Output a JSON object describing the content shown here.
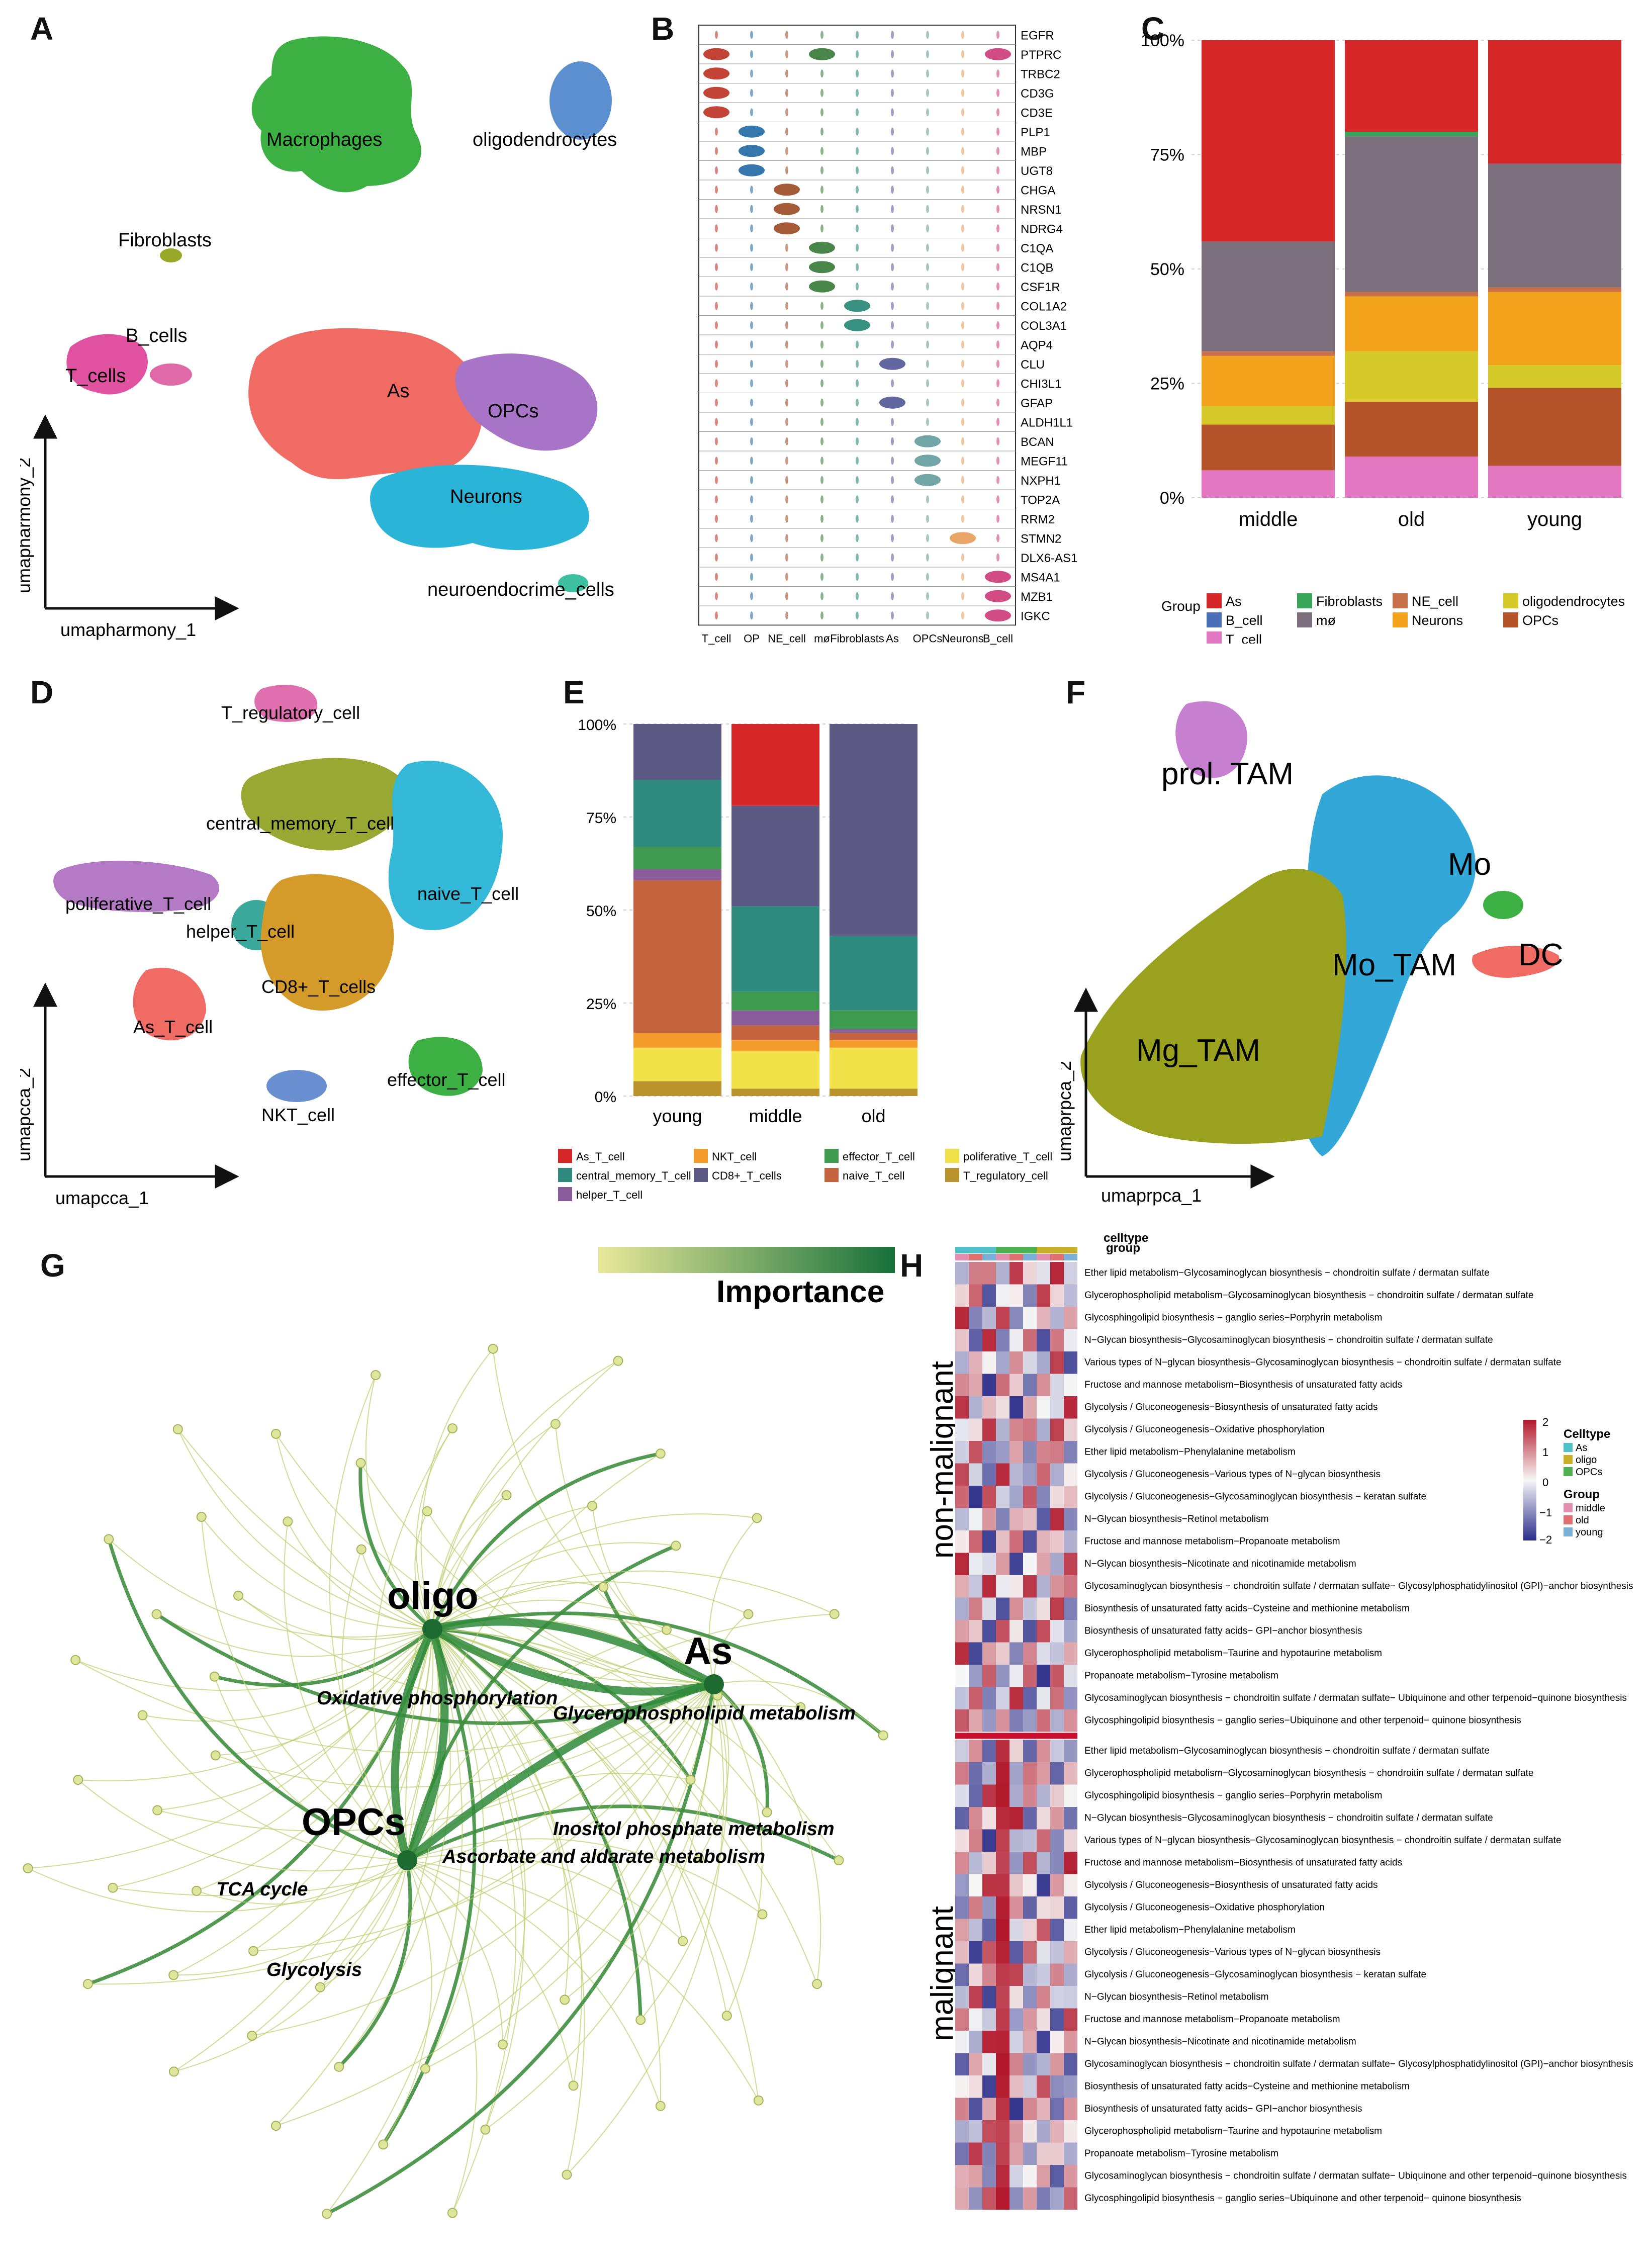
{
  "panel_labels": [
    "A",
    "B",
    "C",
    "D",
    "E",
    "F",
    "G",
    "H"
  ],
  "panelA": {
    "clusters": [
      {
        "name": "Macrophages",
        "color": "#3cb043"
      },
      {
        "name": "oligodendrocytes",
        "color": "#5b8fd0"
      },
      {
        "name": "Fibroblasts",
        "color": "#9aa82a"
      },
      {
        "name": "B_cells",
        "color": "#e06aa8"
      },
      {
        "name": "T_cells",
        "color": "#e052a0"
      },
      {
        "name": "As",
        "color": "#ef6b63"
      },
      {
        "name": "OPCs",
        "color": "#a774c8"
      },
      {
        "name": "Neurons",
        "color": "#29b4d8"
      },
      {
        "name": "neuroendocrime_cells",
        "color": "#3dc0a0"
      }
    ],
    "xlabel": "umapharmony_1",
    "ylabel": "umapharmony_2"
  },
  "panelB": {
    "genes": [
      "EGFR",
      "PTPRC",
      "TRBC2",
      "CD3G",
      "CD3E",
      "PLP1",
      "MBP",
      "UGT8",
      "CHGA",
      "NRSN1",
      "NDRG4",
      "C1QA",
      "C1QB",
      "CSF1R",
      "COL1A2",
      "COL3A1",
      "AQP4",
      "CLU",
      "CHI3L1",
      "GFAP",
      "ALDH1L1",
      "BCAN",
      "MEGF11",
      "NXPH1",
      "TOP2A",
      "RRM2",
      "STMN2",
      "DLX6-AS1",
      "MS4A1",
      "MZB1",
      "IGKC"
    ],
    "celltypes": [
      "T_cell",
      "OP",
      "NE_cell",
      "mø",
      "Fibroblasts",
      "As",
      "OPCs",
      "Neurons",
      "B_cell"
    ],
    "colors": [
      "#c0392b",
      "#2a6fa8",
      "#a0522d",
      "#3f7f3f",
      "#2e8b7a",
      "#5a5f9a",
      "#6aa0a0",
      "#e8a060",
      "#d0437e"
    ]
  },
  "chart_data": [
    {
      "panel": "C",
      "type": "bar",
      "stacked": true,
      "categories": [
        "middle",
        "old",
        "young"
      ],
      "ylim": [
        0,
        100
      ],
      "yticks": [
        "0%",
        "25%",
        "50%",
        "75%",
        "100%"
      ],
      "legend_title": "Group",
      "series": [
        {
          "name": "T_cell",
          "color": "#e377c2",
          "values": [
            6,
            9,
            7
          ]
        },
        {
          "name": "OPCs",
          "color": "#b5532a",
          "values": [
            10,
            12,
            17
          ]
        },
        {
          "name": "oligodendrocytes",
          "color": "#d6c92a",
          "values": [
            4,
            11,
            5
          ]
        },
        {
          "name": "Neurons",
          "color": "#f2a31b",
          "values": [
            11,
            12,
            16
          ]
        },
        {
          "name": "NE_cell",
          "color": "#c7704a",
          "values": [
            1,
            1,
            1
          ]
        },
        {
          "name": "mø",
          "color": "#7a6f7a",
          "values": [
            24,
            34,
            27
          ]
        },
        {
          "name": "Fibroblasts",
          "color": "#3aa65a",
          "values": [
            0,
            1,
            0
          ]
        },
        {
          "name": "B_cell",
          "color": "#4a6fb8",
          "values": [
            0,
            0,
            0
          ]
        },
        {
          "name": "As",
          "color": "#d62728",
          "values": [
            44,
            20,
            27
          ]
        }
      ],
      "legend_order": [
        "As",
        "B_cell",
        "T_cell",
        "Fibroblasts",
        "mø",
        "NE_cell",
        "Neurons",
        "oligodendrocytes",
        "OPCs"
      ]
    },
    {
      "panel": "E",
      "type": "bar",
      "stacked": true,
      "categories": [
        "young",
        "middle",
        "old"
      ],
      "ylim": [
        0,
        100
      ],
      "yticks": [
        "0%",
        "25%",
        "50%",
        "75%",
        "100%"
      ],
      "series": [
        {
          "name": "T_regulatory_cell",
          "color": "#b8932e",
          "values": [
            4,
            2,
            2
          ]
        },
        {
          "name": "poliferative_T_cell",
          "color": "#f2e24a",
          "values": [
            9,
            10,
            11
          ]
        },
        {
          "name": "NKT_cell",
          "color": "#f39c2b",
          "values": [
            4,
            3,
            2
          ]
        },
        {
          "name": "naive_T_cell",
          "color": "#c4653f",
          "values": [
            41,
            4,
            2
          ]
        },
        {
          "name": "helper_T_cell",
          "color": "#8a5c9a",
          "values": [
            3,
            4,
            1
          ]
        },
        {
          "name": "effector_T_cell",
          "color": "#3e9a4e",
          "values": [
            6,
            5,
            5
          ]
        },
        {
          "name": "central_memory_T_cell",
          "color": "#2f8b7e",
          "values": [
            18,
            23,
            20
          ]
        },
        {
          "name": "CD8+_T_cells",
          "color": "#5c5a85",
          "values": [
            15,
            27,
            57
          ]
        },
        {
          "name": "As_T_cell",
          "color": "#d62728",
          "values": [
            0,
            22,
            0
          ]
        }
      ],
      "legend_order": [
        "As_T_cell",
        "central_memory_T_cell",
        "helper_T_cell",
        "NKT_cell",
        "CD8+_T_cells",
        "effector_T_cell",
        "naive_T_cell",
        "poliferative_T_cell",
        "T_regulatory_cell"
      ]
    }
  ],
  "panelD": {
    "clusters": [
      {
        "name": "T_regulatory_cell",
        "color": "#e06fb0"
      },
      {
        "name": "central_memory_T_cell",
        "color": "#99a832"
      },
      {
        "name": "poliferative_T_cell",
        "color": "#b57ac6"
      },
      {
        "name": "helper_T_cell",
        "color": "#3aa89a"
      },
      {
        "name": "naive_T_cell",
        "color": "#33b8d8"
      },
      {
        "name": "CD8+_T_cells",
        "color": "#d49a2a"
      },
      {
        "name": "As_T_cell",
        "color": "#ef6b63"
      },
      {
        "name": "effector_T_cell",
        "color": "#3cb043"
      },
      {
        "name": "NKT_cell",
        "color": "#6a8fd0"
      }
    ],
    "xlabel": "umapcca_1",
    "ylabel": "umapcca_2"
  },
  "panelF": {
    "clusters": [
      {
        "name": "prol. TAM",
        "color": "#c77fd0"
      },
      {
        "name": "Mo",
        "color": "#3cb043"
      },
      {
        "name": "DC",
        "color": "#ef6b63"
      },
      {
        "name": "Mo_TAM",
        "color": "#33a8d8"
      },
      {
        "name": "Mg_TAM",
        "color": "#9aa11e"
      }
    ],
    "xlabel": "umaprpca_1",
    "ylabel": "umaprpca_2"
  },
  "panelG": {
    "legend_title": "Importance",
    "hubs": [
      {
        "name": "oligo"
      },
      {
        "name": "As"
      },
      {
        "name": "OPCs"
      }
    ],
    "pathways": [
      "Oxidative phosphorylation",
      "Glycerophospholipid metabolism",
      "Inositol phosphate metabolism",
      "Ascorbate and aldarate metabolism",
      "TCA cycle",
      "Glycolysis"
    ]
  },
  "panelH": {
    "anno_labels": [
      "celltype",
      "group"
    ],
    "legend_celltype_title": "Celltype",
    "legend_celltype": [
      {
        "name": "As",
        "color": "#4fbfc8"
      },
      {
        "name": "oligo",
        "color": "#c8b02a"
      },
      {
        "name": "OPCs",
        "color": "#4caf50"
      }
    ],
    "legend_group_title": "Group",
    "legend_group": [
      {
        "name": "middle",
        "color": "#e58fb0"
      },
      {
        "name": "old",
        "color": "#e07070"
      },
      {
        "name": "young",
        "color": "#7ab0d8"
      }
    ],
    "scale_ticks": [
      "2",
      "1",
      "0",
      "−1",
      "−2"
    ],
    "row_group_labels": [
      "non-malignant",
      "malignant"
    ],
    "rows": [
      "Ether lipid metabolism−Glycosaminoglycan biosynthesis − chondroitin sulfate / dermatan sulfate",
      "Glycerophospholipid metabolism−Glycosaminoglycan biosynthesis − chondroitin sulfate / dermatan sulfate",
      "Glycosphingolipid biosynthesis − ganglio series−Porphyrin metabolism",
      "N−Glycan biosynthesis−Glycosaminoglycan biosynthesis − chondroitin sulfate / dermatan sulfate",
      "Various types of N−glycan biosynthesis−Glycosaminoglycan biosynthesis − chondroitin sulfate / dermatan sulfate",
      "Fructose and mannose metabolism−Biosynthesis of unsaturated fatty acids",
      "Glycolysis / Gluconeogenesis−Biosynthesis of unsaturated fatty acids",
      "Glycolysis / Gluconeogenesis−Oxidative phosphorylation",
      "Ether lipid metabolism−Phenylalanine metabolism",
      "Glycolysis / Gluconeogenesis−Various types of N−glycan biosynthesis",
      "Glycolysis / Gluconeogenesis−Glycosaminoglycan biosynthesis − keratan sulfate",
      "N−Glycan biosynthesis−Retinol metabolism",
      "Fructose and mannose metabolism−Propanoate metabolism",
      "N−Glycan biosynthesis−Nicotinate and nicotinamide metabolism",
      "Glycosaminoglycan biosynthesis − chondroitin sulfate / dermatan sulfate− Glycosylphosphatidylinositol (GPI)−anchor biosynthesis",
      "Biosynthesis of unsaturated fatty acids−Cysteine and methionine metabolism",
      "Biosynthesis of unsaturated fatty acids− GPI−anchor biosynthesis",
      "Glycerophospholipid metabolism−Taurine and hypotaurine metabolism",
      "Propanoate metabolism−Tyrosine metabolism",
      "Glycosaminoglycan biosynthesis − chondroitin sulfate / dermatan sulfate− Ubiquinone and other terpenoid−quinone biosynthesis",
      "Glycosphingolipid biosynthesis − ganglio series−Ubiquinone and other terpenoid− quinone biosynthesis"
    ]
  }
}
